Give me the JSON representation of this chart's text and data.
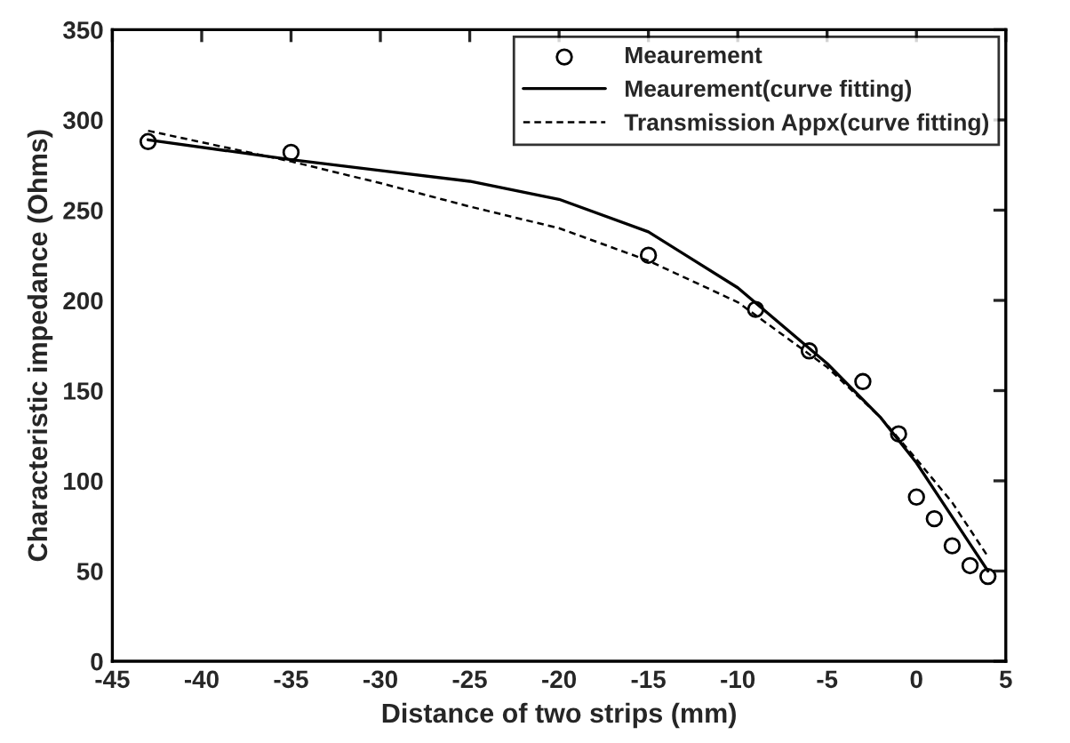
{
  "chart_data": {
    "type": "scatter",
    "xlabel": "Distance of two strips (mm)",
    "ylabel": "Characteristic impedance (Ohms)",
    "xlim": [
      -45,
      5
    ],
    "xticks": [
      -45,
      -40,
      -35,
      -30,
      -25,
      -20,
      -15,
      -10,
      -5,
      0,
      5
    ],
    "ylim": [
      0,
      350
    ],
    "yticks": [
      0,
      50,
      100,
      150,
      200,
      250,
      300,
      350
    ],
    "grid": false,
    "legend": "top right",
    "series": [
      {
        "name": "Meaurement",
        "marker": "circle",
        "color": "#000000",
        "x": [
          -43,
          -35,
          -15,
          -9,
          -6,
          -3,
          -1,
          0,
          1,
          2,
          3,
          4
        ],
        "values": [
          288,
          282,
          225,
          195,
          172,
          155,
          126,
          91,
          79,
          64,
          53,
          47
        ]
      },
      {
        "name": "Meaurement(curve fitting)",
        "type": "line",
        "line_style": "solid",
        "color": "#000000",
        "x": [
          -43,
          -35,
          -30,
          -25,
          -20,
          -15,
          -10,
          -5,
          -2,
          0,
          2,
          3,
          4
        ],
        "values": [
          289,
          278,
          272,
          266,
          256,
          238,
          207,
          165,
          135,
          110,
          80,
          65,
          50
        ]
      },
      {
        "name": "Transmission Appx(curve fitting)",
        "type": "line",
        "line_style": "dashed",
        "color": "#000000",
        "x": [
          -43,
          -35,
          -30,
          -25,
          -20,
          -15,
          -10,
          -5,
          -2,
          0,
          2,
          4
        ],
        "values": [
          294,
          277,
          265,
          252,
          240,
          222,
          199,
          163,
          135,
          112,
          88,
          58
        ]
      }
    ]
  }
}
